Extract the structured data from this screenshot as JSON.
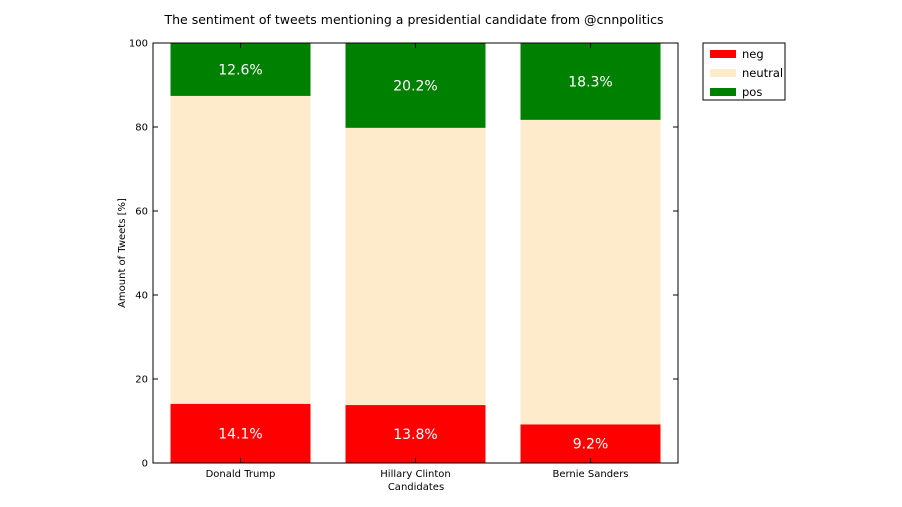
{
  "chart_data": {
    "type": "bar",
    "stacked": true,
    "title": "The sentiment of tweets mentioning a presidential candidate from @cnnpolitics",
    "xlabel": "Candidates",
    "ylabel": "Amount of Tweets [%]",
    "ylim": [
      0,
      100
    ],
    "yticks": [
      0,
      20,
      40,
      60,
      80,
      100
    ],
    "grid": false,
    "legend_position": "outside-top-right",
    "categories": [
      "Donald Trump",
      "Hillary Clinton",
      "Bernie Sanders"
    ],
    "series": [
      {
        "name": "neg",
        "color": "#ff0000",
        "values": [
          14.1,
          13.8,
          9.2
        ],
        "labels": [
          "14.1%",
          "13.8%",
          "9.2%"
        ]
      },
      {
        "name": "neutral",
        "color": "#fdebcc",
        "values": [
          73.3,
          66.0,
          72.5
        ],
        "labels": [
          "",
          "",
          ""
        ]
      },
      {
        "name": "pos",
        "color": "#008000",
        "values": [
          12.6,
          20.2,
          18.3
        ],
        "labels": [
          "12.6%",
          "20.2%",
          "18.3%"
        ]
      }
    ]
  }
}
